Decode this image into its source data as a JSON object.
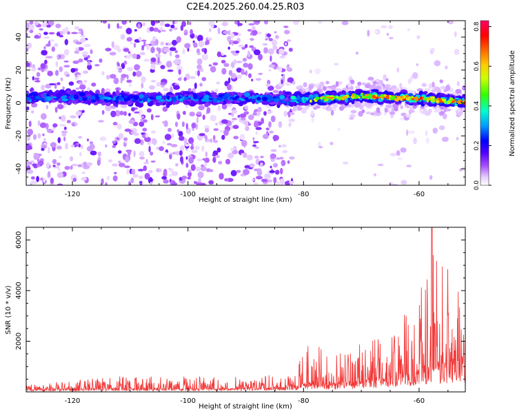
{
  "title": "C2E4.2025.260.04.25.R03",
  "colors": {
    "snr_line": "#f23a3a",
    "axis": "#000000",
    "background": "#ffffff"
  },
  "chart_data": [
    {
      "type": "heatmap",
      "title": "C2E4.2025.260.04.25.R03",
      "xlabel": "Height of straight line (km)",
      "ylabel": "Frequency (Hz)",
      "xlim": [
        -128,
        -52
      ],
      "ylim": [
        -50,
        50
      ],
      "x_ticks": [
        -120,
        -100,
        -80,
        -60
      ],
      "y_ticks": [
        -40,
        -20,
        0,
        20,
        40
      ],
      "colorbar": {
        "label": "Normalized spectral amplitude",
        "range": [
          0.0,
          0.83
        ],
        "ticks": [
          0.0,
          0.2,
          0.4,
          0.6,
          0.8
        ],
        "colormap": [
          "#ffffff",
          "#cc99ff",
          "#7f00ff",
          "#0000ff",
          "#00ffff",
          "#00ff00",
          "#ffff00",
          "#ff8000",
          "#ff0000",
          "#ff0080"
        ]
      },
      "signal_band": {
        "center_line": [
          [
            -128,
            4
          ],
          [
            -110,
            2.5
          ],
          [
            -100,
            3
          ],
          [
            -90,
            3
          ],
          [
            -80,
            2
          ],
          [
            -70,
            4
          ],
          [
            -62,
            3
          ],
          [
            -52,
            1
          ]
        ],
        "noise_region_x": [
          -128,
          -82
        ],
        "strong_region_x": [
          -82,
          -52
        ]
      }
    },
    {
      "type": "line",
      "title": "",
      "xlabel": "Height of straight line (km)",
      "ylabel": "SNR (10 * v/v)",
      "xlim": [
        -128,
        -52
      ],
      "ylim": [
        0,
        6500
      ],
      "x_ticks": [
        -120,
        -100,
        -80,
        -60
      ],
      "y_ticks": [
        2000,
        4000,
        6000
      ],
      "series": [
        {
          "name": "SNR",
          "envelope_points": [
            {
              "x": -128,
              "base": 100,
              "peak": 280
            },
            {
              "x": -112,
              "base": 120,
              "peak": 620
            },
            {
              "x": -95,
              "base": 120,
              "peak": 600
            },
            {
              "x": -82,
              "base": 180,
              "peak": 700
            },
            {
              "x": -79,
              "base": 350,
              "peak": 2000
            },
            {
              "x": -75,
              "base": 300,
              "peak": 1600
            },
            {
              "x": -70,
              "base": 400,
              "peak": 1900
            },
            {
              "x": -64,
              "base": 600,
              "peak": 2700
            },
            {
              "x": -60,
              "base": 800,
              "peak": 3800
            },
            {
              "x": -58,
              "base": 1000,
              "peak": 6500
            },
            {
              "x": -55,
              "base": 1100,
              "peak": 5200
            },
            {
              "x": -52,
              "base": 1200,
              "peak": 4500
            }
          ]
        }
      ]
    }
  ]
}
